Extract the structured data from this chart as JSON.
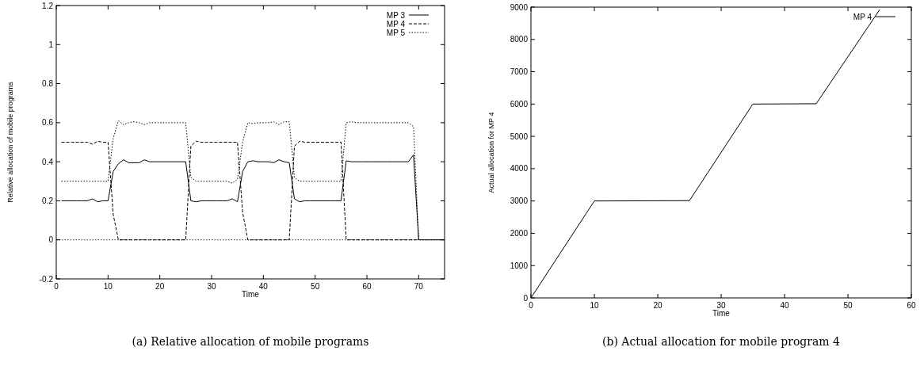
{
  "chart_data": [
    {
      "type": "line",
      "title": "(a) Relative allocation of mobile programs",
      "xlabel": "Time",
      "ylabel": "Relative allocation of mobile programs",
      "x": [
        1,
        2,
        3,
        4,
        5,
        6,
        7,
        8,
        9,
        10,
        11,
        12,
        13,
        14,
        15,
        16,
        17,
        18,
        19,
        20,
        21,
        22,
        23,
        24,
        25,
        26,
        27,
        28,
        29,
        30,
        31,
        32,
        33,
        34,
        35,
        36,
        37,
        38,
        39,
        40,
        41,
        42,
        43,
        44,
        45,
        46,
        47,
        48,
        49,
        50,
        51,
        52,
        53,
        54,
        55,
        56,
        57,
        58,
        59,
        60,
        61,
        62,
        63,
        64,
        65,
        66,
        67,
        68,
        69,
        70,
        71,
        72,
        73,
        74,
        75
      ],
      "xlim": [
        0,
        75
      ],
      "xticks": [
        0,
        10,
        20,
        30,
        40,
        50,
        60,
        70
      ],
      "ylim": [
        -0.2,
        1.2
      ],
      "yticks": [
        -0.2,
        0,
        0.2,
        0.4,
        0.6,
        0.8,
        1,
        1.2
      ],
      "legend": "top right",
      "grid": false,
      "ref_lines": [
        {
          "axis": "y",
          "value": 0,
          "line_style": "dotted",
          "color": "#000000"
        }
      ],
      "series": [
        {
          "name": "MP 3",
          "color": "#000000",
          "line_style": "solid",
          "values": [
            0.2,
            0.2,
            0.2,
            0.2,
            0.2,
            0.2,
            0.21,
            0.195,
            0.2,
            0.2,
            0.35,
            0.39,
            0.41,
            0.395,
            0.395,
            0.395,
            0.41,
            0.4,
            0.4,
            0.4,
            0.4,
            0.4,
            0.4,
            0.4,
            0.4,
            0.2,
            0.195,
            0.2,
            0.2,
            0.2,
            0.2,
            0.2,
            0.2,
            0.21,
            0.195,
            0.35,
            0.4,
            0.405,
            0.4,
            0.4,
            0.4,
            0.395,
            0.41,
            0.4,
            0.395,
            0.21,
            0.195,
            0.2,
            0.2,
            0.2,
            0.2,
            0.2,
            0.2,
            0.2,
            0.2,
            0.405,
            0.4,
            0.4,
            0.4,
            0.4,
            0.4,
            0.4,
            0.4,
            0.4,
            0.4,
            0.4,
            0.4,
            0.4,
            0.435,
            0,
            0,
            0,
            0,
            0,
            0
          ]
        },
        {
          "name": "MP 4",
          "color": "#000000",
          "line_style": "dashed",
          "values": [
            0.5,
            0.5,
            0.5,
            0.5,
            0.5,
            0.5,
            0.49,
            0.505,
            0.5,
            0.5,
            0.13,
            0,
            0,
            0,
            0,
            0,
            0,
            0,
            0,
            0,
            0,
            0,
            0,
            0,
            0,
            0.48,
            0.505,
            0.5,
            0.5,
            0.5,
            0.5,
            0.5,
            0.5,
            0.5,
            0.5,
            0.14,
            0,
            0,
            0,
            0,
            0,
            0,
            0,
            0,
            0,
            0.48,
            0.505,
            0.5,
            0.5,
            0.5,
            0.5,
            0.5,
            0.5,
            0.5,
            0.5,
            0,
            0,
            0,
            0,
            0,
            0,
            0,
            0,
            0,
            0,
            0,
            0,
            0,
            0,
            0,
            null,
            null,
            null,
            null,
            null
          ]
        },
        {
          "name": "MP 5",
          "color": "#000000",
          "line_style": "dotted",
          "values": [
            0.3,
            0.3,
            0.3,
            0.3,
            0.3,
            0.3,
            0.3,
            0.3,
            0.3,
            0.3,
            0.52,
            0.61,
            0.59,
            0.6,
            0.605,
            0.6,
            0.59,
            0.6,
            0.6,
            0.6,
            0.6,
            0.6,
            0.6,
            0.6,
            0.6,
            0.32,
            0.3,
            0.3,
            0.3,
            0.3,
            0.3,
            0.3,
            0.3,
            0.29,
            0.31,
            0.5,
            0.6,
            0.595,
            0.6,
            0.6,
            0.6,
            0.605,
            0.59,
            0.605,
            0.605,
            0.32,
            0.3,
            0.3,
            0.3,
            0.3,
            0.3,
            0.3,
            0.3,
            0.3,
            0.3,
            0.6,
            0.605,
            0.6,
            0.6,
            0.6,
            0.6,
            0.6,
            0.6,
            0.6,
            0.6,
            0.6,
            0.6,
            0.6,
            0.58,
            0,
            null,
            null,
            null,
            null,
            null
          ]
        }
      ]
    },
    {
      "type": "line",
      "title": "(b) Actual allocation for mobile program 4",
      "xlabel": "Time",
      "ylabel": "Actual allocation for MP 4",
      "x": [
        0,
        10,
        25,
        35,
        45,
        55
      ],
      "xlim": [
        0,
        60
      ],
      "xticks": [
        0,
        10,
        20,
        30,
        40,
        50,
        60
      ],
      "ylim": [
        0,
        9000
      ],
      "yticks": [
        0,
        1000,
        2000,
        3000,
        4000,
        5000,
        6000,
        7000,
        8000,
        9000
      ],
      "legend": "top right",
      "grid": false,
      "series": [
        {
          "name": "MP 4",
          "color": "#000000",
          "line_style": "solid",
          "values": [
            0,
            3000,
            3010,
            6000,
            6010,
            8920
          ]
        }
      ]
    }
  ]
}
